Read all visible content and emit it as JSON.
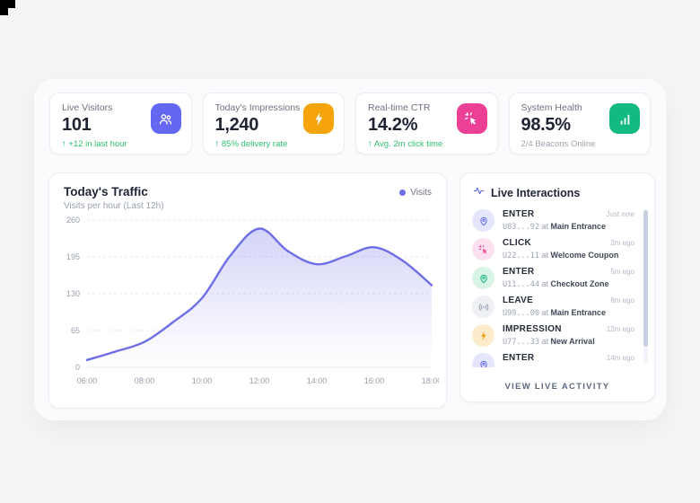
{
  "page": {
    "background": "#f5f5f6"
  },
  "stats": [
    {
      "label": "Live Visitors",
      "value": "101",
      "arrow": "↑",
      "delta": "+12 in last hour",
      "delta_type": "positive",
      "icon": "users-icon",
      "icon_bg": "#6467f2"
    },
    {
      "label": "Today's Impressions",
      "value": "1,240",
      "arrow": "↑",
      "delta": "85% delivery rate",
      "delta_type": "positive",
      "icon": "lightning-icon",
      "icon_bg": "#f5a40b"
    },
    {
      "label": "Real-time CTR",
      "value": "14.2%",
      "arrow": "↑",
      "delta": "Avg. 2m click time",
      "delta_type": "positive",
      "icon": "cursor-click-icon",
      "icon_bg": "#ec3f96"
    },
    {
      "label": "System Health",
      "value": "98.5%",
      "arrow": "",
      "delta": "2/4 Beacons Online",
      "delta_type": "neutral",
      "icon": "bar-chart-icon",
      "icon_bg": "#12b981"
    }
  ],
  "chart": {
    "title": "Today's Traffic",
    "subtitle": "Visits per hour (Last 12h)",
    "legend": [
      {
        "label": "Visits",
        "color": "#6d6ee8"
      }
    ]
  },
  "chart_data": {
    "type": "area",
    "title": "Today's Traffic",
    "series_name": "Visits",
    "x": [
      "06:00",
      "07:00",
      "08:00",
      "09:00",
      "10:00",
      "11:00",
      "12:00",
      "13:00",
      "14:00",
      "15:00",
      "16:00",
      "17:00",
      "18:00"
    ],
    "values": [
      13,
      28,
      45,
      80,
      122,
      198,
      245,
      205,
      182,
      196,
      212,
      188,
      145
    ],
    "x_tick_labels": [
      "06:00",
      "08:00",
      "10:00",
      "12:00",
      "14:00",
      "16:00",
      "18:00"
    ],
    "y_ticks": [
      0,
      65,
      130,
      195,
      260
    ],
    "ylim": [
      0,
      260
    ],
    "grid": true,
    "legend_position": "top-right",
    "line_color": "#6d6ee8"
  },
  "interactions": {
    "title": "Live Interactions",
    "items": [
      {
        "action": "ENTER",
        "user_id": "U83...92",
        "connector": "at",
        "location": "Main Entrance",
        "time": "Just now",
        "icon": "pin-icon",
        "tint": "indigo"
      },
      {
        "action": "CLICK",
        "user_id": "U22...11",
        "connector": "at",
        "location": "Welcome Coupon",
        "time": "2m ago",
        "icon": "cursor-click-icon",
        "tint": "pink"
      },
      {
        "action": "ENTER",
        "user_id": "U11...44",
        "connector": "at",
        "location": "Checkout Zone",
        "time": "5m ago",
        "icon": "pin-icon",
        "tint": "green"
      },
      {
        "action": "LEAVE",
        "user_id": "U99...00",
        "connector": "at",
        "location": "Main Entrance",
        "time": "8m ago",
        "icon": "broadcast-icon",
        "tint": "gray"
      },
      {
        "action": "IMPRESSION",
        "user_id": "U77...33",
        "connector": "at",
        "location": "New Arrival",
        "time": "12m ago",
        "icon": "lightning-icon",
        "tint": "amber"
      },
      {
        "action": "ENTER",
        "user_id": "",
        "connector": "",
        "location": "",
        "time": "14m ago",
        "icon": "pin-icon",
        "tint": "indigo"
      }
    ],
    "footer_link": "VIEW LIVE ACTIVITY"
  },
  "tints": {
    "indigo": {
      "bg": "#e4e7fc",
      "fg": "#6366f1"
    },
    "pink": {
      "bg": "#fce0ef",
      "fg": "#ec4899"
    },
    "green": {
      "bg": "#d8f4e6",
      "fg": "#10b981"
    },
    "gray": {
      "bg": "#eef0f4",
      "fg": "#99a1b0"
    },
    "amber": {
      "bg": "#fdeccb",
      "fg": "#f1a20c"
    }
  }
}
